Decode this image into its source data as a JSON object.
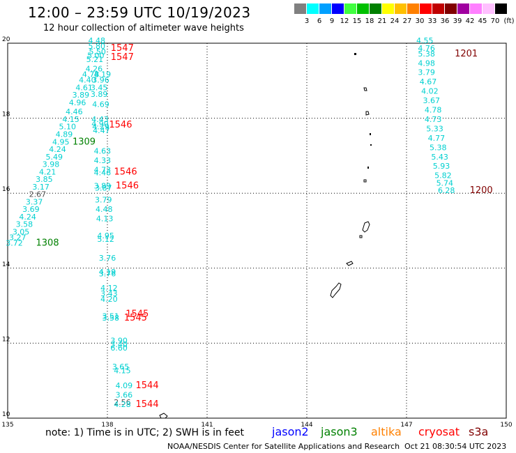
{
  "title": "12:00 – 23:59 UTC 10/19/2023",
  "subtitle": "12 hour collection of altimeter wave heights",
  "legend": {
    "unit": "(ft)",
    "items": [
      {
        "label": "3",
        "color": "#808080"
      },
      {
        "label": "6",
        "color": "#00ffff"
      },
      {
        "label": "9",
        "color": "#00a0ff"
      },
      {
        "label": "12",
        "color": "#0000ff"
      },
      {
        "label": "15",
        "color": "#40ff40"
      },
      {
        "label": "18",
        "color": "#00c000"
      },
      {
        "label": "21",
        "color": "#008000"
      },
      {
        "label": "24",
        "color": "#ffff00"
      },
      {
        "label": "27",
        "color": "#ffc000"
      },
      {
        "label": "30",
        "color": "#ff8000"
      },
      {
        "label": "33",
        "color": "#ff0000"
      },
      {
        "label": "36",
        "color": "#c00000"
      },
      {
        "label": "39",
        "color": "#800000"
      },
      {
        "label": "42",
        "color": "#a000a0"
      },
      {
        "label": "45",
        "color": "#ff80ff"
      },
      {
        "label": "70",
        "color": "#ffc0ff"
      },
      {
        "label": "",
        "color": "#000000"
      }
    ]
  },
  "map": {
    "lon_range": [
      135,
      150
    ],
    "lat_range": [
      10,
      20
    ],
    "lon_ticks": [
      "135",
      "138",
      "141",
      "144",
      "147",
      "150"
    ],
    "lat_ticks": [
      "10",
      "12",
      "14",
      "16",
      "18",
      "20"
    ]
  },
  "tracks": [
    {
      "time": "1547",
      "time_lon": 138.1,
      "time_lat": 19.8,
      "color": "#ff0000",
      "points": [
        [
          137.68,
          20.0,
          "4.48"
        ],
        [
          137.68,
          19.85,
          "5.80"
        ],
        [
          137.7,
          19.7,
          "5.50"
        ],
        [
          137.65,
          19.6,
          "5.00"
        ]
      ]
    },
    {
      "time": "1547",
      "time_lon": 138.1,
      "time_lat": 19.55,
      "color": "#ff0000",
      "points": [
        [
          137.62,
          19.5,
          "5.21"
        ],
        [
          137.6,
          19.25,
          "4.26"
        ],
        [
          137.5,
          19.1,
          "4.78"
        ],
        [
          137.85,
          19.1,
          "4.19"
        ],
        [
          137.4,
          18.95,
          "4.40"
        ],
        [
          137.8,
          18.95,
          "3.96"
        ],
        [
          137.3,
          18.75,
          "4.61"
        ],
        [
          137.75,
          18.75,
          "3.45"
        ],
        [
          137.2,
          18.55,
          "3.89"
        ],
        [
          137.75,
          18.57,
          "3.89"
        ],
        [
          137.1,
          18.35,
          "4.96"
        ],
        [
          137.8,
          18.3,
          "4.69"
        ],
        [
          137.0,
          18.1,
          "4.46"
        ],
        [
          136.9,
          17.9,
          "4.15"
        ],
        [
          136.8,
          17.7,
          "5.10"
        ],
        [
          136.7,
          17.5,
          "4.89"
        ],
        [
          136.6,
          17.3,
          "4.95"
        ],
        [
          136.5,
          17.1,
          "4.24"
        ],
        [
          136.4,
          16.9,
          "5.49"
        ],
        [
          136.3,
          16.7,
          "3.98"
        ],
        [
          136.2,
          16.5,
          "4.21"
        ],
        [
          136.1,
          16.3,
          "3.85"
        ],
        [
          136.0,
          16.1,
          "3.17"
        ],
        [
          135.9,
          15.9,
          "2.67"
        ],
        [
          135.8,
          15.7,
          "3.37"
        ],
        [
          135.7,
          15.5,
          "3.69"
        ],
        [
          135.6,
          15.3,
          "4.24"
        ],
        [
          135.5,
          15.1,
          "3.58"
        ],
        [
          135.4,
          14.9,
          "3.05"
        ],
        [
          135.3,
          14.75,
          "3.27"
        ],
        [
          135.2,
          14.6,
          "3.72"
        ]
      ]
    },
    {
      "time": "1309",
      "time_lon": 136.95,
      "time_lat": 17.3,
      "color": "#008000",
      "points": []
    },
    {
      "time": "1308",
      "time_lon": 135.85,
      "time_lat": 14.6,
      "color": "#008000",
      "points": []
    },
    {
      "time": "1546",
      "time_lon": 138.05,
      "time_lat": 17.75,
      "color": "#ff0000",
      "points": [
        [
          137.78,
          17.9,
          "4.43"
        ],
        [
          137.78,
          17.78,
          "4.90"
        ],
        [
          137.8,
          17.7,
          "4.29"
        ],
        [
          137.82,
          17.6,
          "4.47"
        ],
        [
          137.85,
          17.05,
          "4.63"
        ],
        [
          137.85,
          16.8,
          "4.33"
        ],
        [
          137.85,
          16.55,
          "4.73"
        ],
        [
          137.85,
          16.48,
          "4.46"
        ],
        [
          137.85,
          16.12,
          "3.89"
        ],
        [
          137.88,
          16.07,
          "3.87"
        ],
        [
          137.88,
          15.75,
          "3.79"
        ],
        [
          137.9,
          15.5,
          "4.48"
        ],
        [
          137.92,
          15.25,
          "4.13"
        ],
        [
          137.95,
          14.8,
          "4.95"
        ],
        [
          137.95,
          14.7,
          "5.12"
        ],
        [
          138.0,
          14.2,
          "3.76"
        ]
      ]
    },
    {
      "time": "1546",
      "time_lon": 138.2,
      "time_lat": 16.5,
      "color": "#ff0000",
      "points": []
    },
    {
      "time": "1546",
      "time_lon": 138.25,
      "time_lat": 16.12,
      "color": "#ff0000",
      "points": []
    },
    {
      "time": "1545",
      "time_lon": 138.55,
      "time_lat": 12.7,
      "color": "#ff0000",
      "points": [
        [
          138.0,
          13.83,
          "4.19"
        ],
        [
          138.0,
          13.78,
          "3.76"
        ],
        [
          138.05,
          13.4,
          "4.12"
        ],
        [
          138.05,
          13.25,
          "3.43"
        ],
        [
          138.05,
          13.1,
          "4.20"
        ],
        [
          138.1,
          12.65,
          "3.51"
        ],
        [
          138.1,
          12.6,
          "3.58"
        ]
      ]
    },
    {
      "time": "1545",
      "time_lon": 138.5,
      "time_lat": 12.6,
      "color": "#ff0000",
      "points": []
    },
    {
      "time": "1544",
      "time_lon": 138.85,
      "time_lat": 10.8,
      "color": "#ff0000",
      "points": [
        [
          138.35,
          12.0,
          "3.90"
        ],
        [
          138.35,
          11.9,
          "3.40"
        ],
        [
          138.35,
          11.8,
          "6.60"
        ],
        [
          138.4,
          11.3,
          "3.65"
        ],
        [
          138.45,
          11.2,
          "4.15"
        ],
        [
          138.5,
          10.8,
          "4.09"
        ],
        [
          138.5,
          10.55,
          "3.66"
        ]
      ]
    },
    {
      "time": "1544",
      "time_lon": 138.85,
      "time_lat": 10.3,
      "color": "#ff0000",
      "points": [
        [
          138.45,
          10.35,
          "2.56"
        ],
        [
          138.45,
          10.3,
          "4.28"
        ]
      ]
    },
    {
      "time": "1201",
      "time_lon": 148.45,
      "time_lat": 19.65,
      "color": "#800000",
      "points": [
        [
          147.55,
          20.0,
          "4.55"
        ],
        [
          147.6,
          19.8,
          "4.76"
        ],
        [
          147.6,
          19.65,
          "5.38"
        ],
        [
          147.6,
          19.4,
          "4.98"
        ],
        [
          147.6,
          19.15,
          "3.79"
        ],
        [
          147.65,
          18.9,
          "4.67"
        ],
        [
          147.7,
          18.65,
          "4.02"
        ],
        [
          147.75,
          18.4,
          "3.67"
        ],
        [
          147.8,
          18.15,
          "4.78"
        ],
        [
          147.8,
          17.9,
          "4.73"
        ],
        [
          147.85,
          17.65,
          "5.33"
        ],
        [
          147.9,
          17.4,
          "4.77"
        ],
        [
          147.95,
          17.15,
          "5.38"
        ],
        [
          148.0,
          16.9,
          "5.43"
        ],
        [
          148.05,
          16.65,
          "5.93"
        ],
        [
          148.1,
          16.4,
          "5.82"
        ],
        [
          148.15,
          16.2,
          "5.74"
        ],
        [
          148.2,
          16.0,
          "6.28"
        ]
      ]
    },
    {
      "time": "1200",
      "time_lon": 148.9,
      "time_lat": 16.0,
      "color": "#800000",
      "points": []
    }
  ],
  "footer": {
    "note": "note:  1) Time is in UTC;  2) SWH is in feet",
    "satellites": [
      {
        "name": "jason2",
        "color": "#0000ff"
      },
      {
        "name": "jason3",
        "color": "#008000"
      },
      {
        "name": "altika",
        "color": "#ff8000"
      },
      {
        "name": "cryosat",
        "color": "#ff0000"
      },
      {
        "name": "s3a",
        "color": "#800000"
      }
    ],
    "credit": "NOAA/NESDIS Center for Satellite Applications and Research",
    "timestamp": "Oct 21 08:30:54 UTC 2023"
  }
}
